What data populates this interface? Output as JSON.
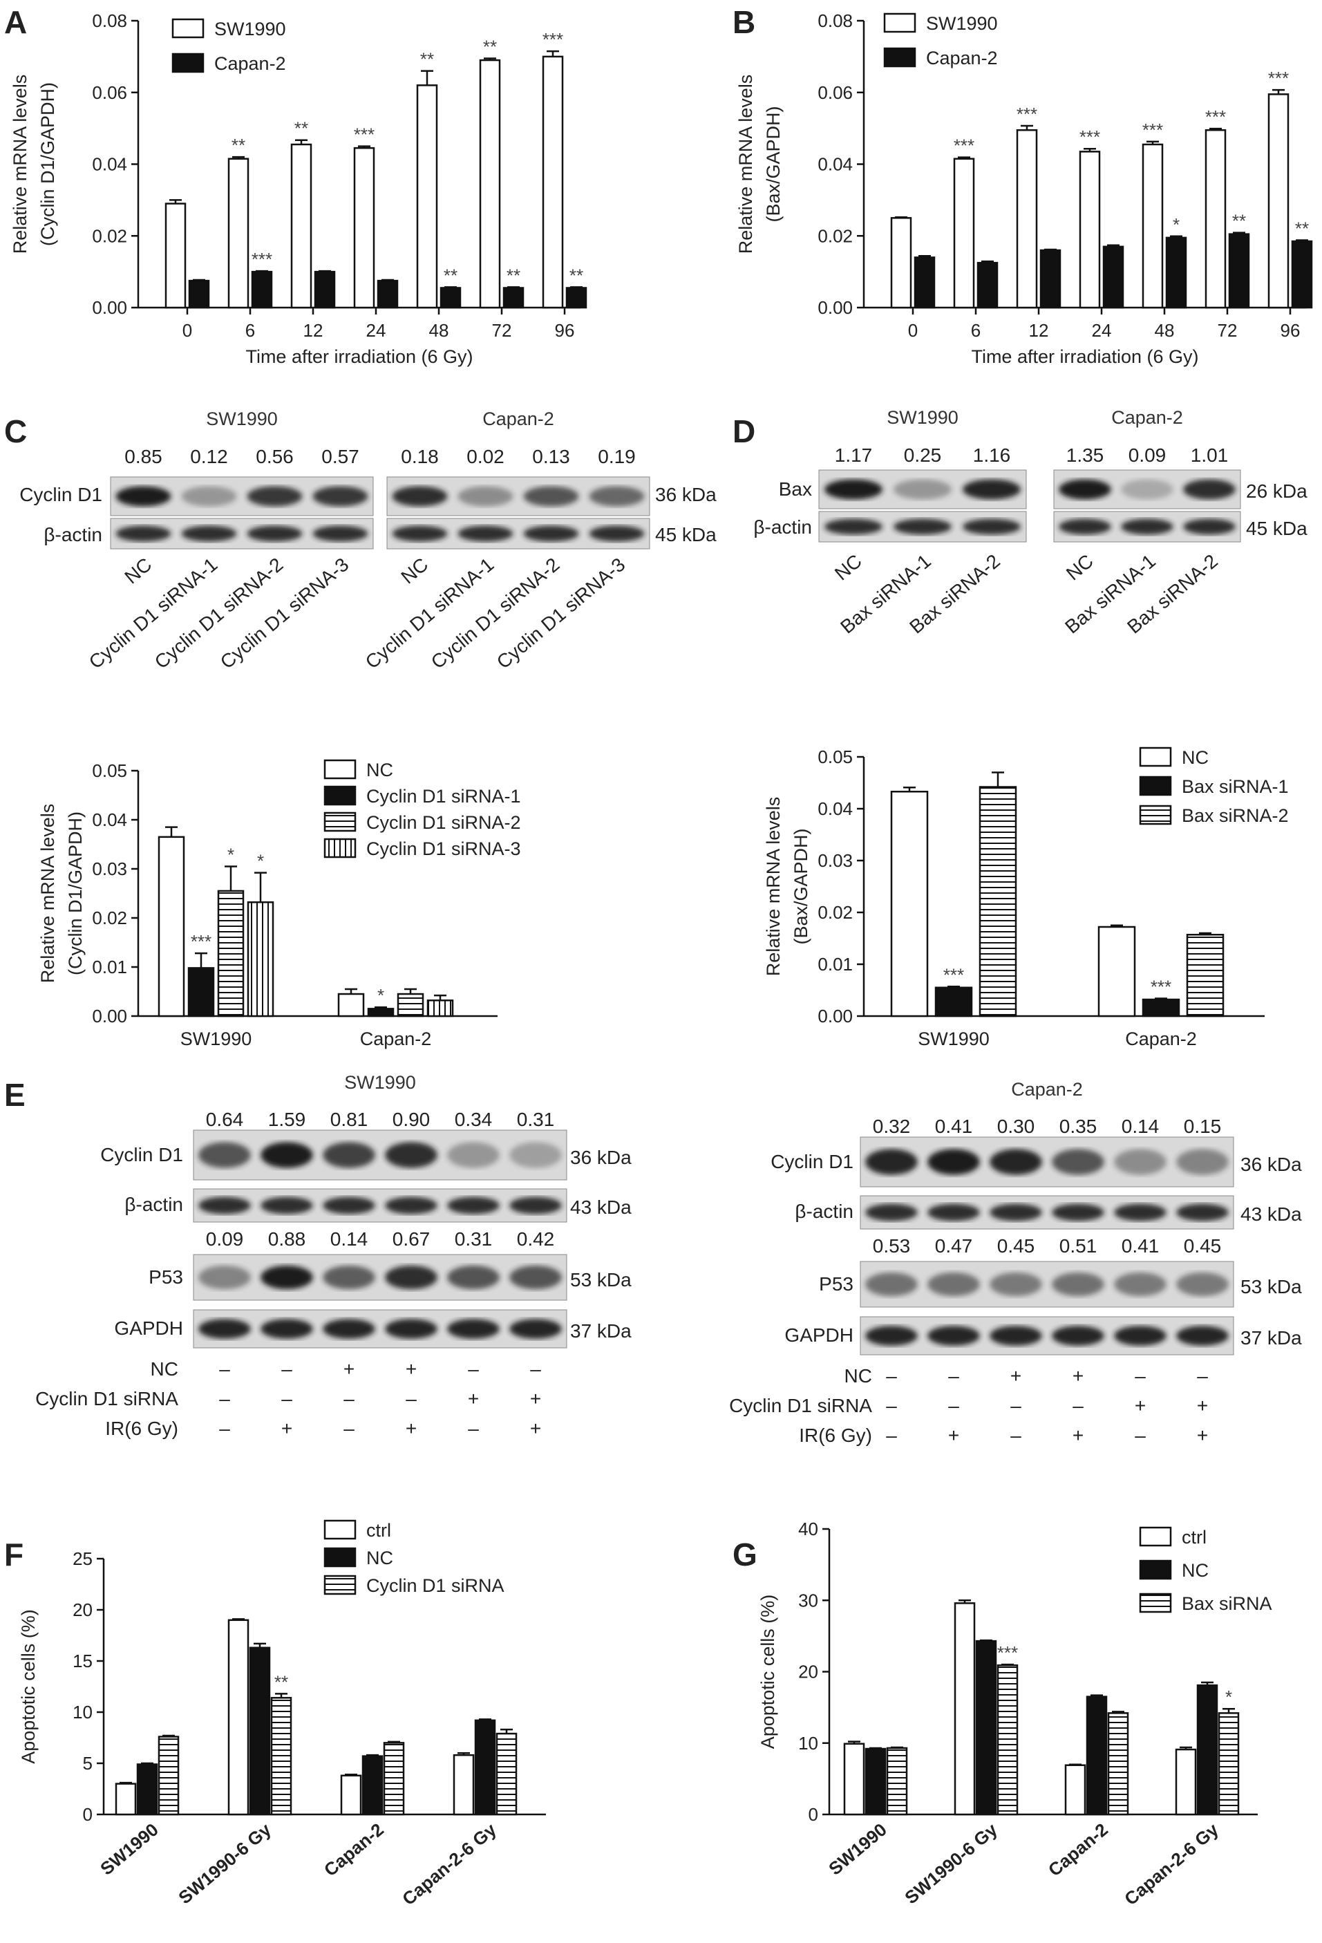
{
  "figure": {
    "panels": [
      "A",
      "B",
      "C",
      "D",
      "E",
      "F",
      "G"
    ]
  },
  "colors": {
    "open": "#ffffff",
    "filled": "#111111",
    "stroke": "#111111",
    "blot_bg": "#d9d9d9",
    "band": "#1a1a1a"
  },
  "chart_data": [
    {
      "id": "A",
      "type": "bar",
      "categories": [
        "0",
        "6",
        "12",
        "24",
        "48",
        "72",
        "96"
      ],
      "series": [
        {
          "name": "SW1990",
          "fill": "open",
          "values": [
            0.029,
            0.0415,
            0.0455,
            0.0445,
            0.062,
            0.069,
            0.07
          ],
          "errors": [
            0.001,
            0.0005,
            0.0012,
            0.0005,
            0.004,
            0.0005,
            0.0015
          ],
          "stars": [
            "",
            "**",
            "**",
            "***",
            "**",
            "**",
            "***"
          ]
        },
        {
          "name": "Capan-2",
          "fill": "filled",
          "values": [
            0.0075,
            0.01,
            0.01,
            0.0075,
            0.0055,
            0.0055,
            0.0055
          ],
          "errors": [
            0.0002,
            0.0002,
            0.0002,
            0.0002,
            0.0002,
            0.0002,
            0.0002
          ],
          "stars": [
            "",
            "***",
            "",
            "",
            "**",
            "**",
            "**"
          ]
        }
      ],
      "xlabel": "Time after irradiation (6 Gy)",
      "ylabel": [
        "Relative mRNA levels",
        "(Cyclin D1/GAPDH)"
      ],
      "ylim": [
        0,
        0.08
      ],
      "yticks": [
        "0.00",
        "0.02",
        "0.04",
        "0.06",
        "0.08"
      ]
    },
    {
      "id": "B",
      "type": "bar",
      "categories": [
        "0",
        "6",
        "12",
        "24",
        "48",
        "72",
        "96"
      ],
      "series": [
        {
          "name": "SW1990",
          "fill": "open",
          "values": [
            0.025,
            0.0415,
            0.0495,
            0.0435,
            0.0455,
            0.0495,
            0.0595
          ],
          "errors": [
            0.0002,
            0.0004,
            0.0012,
            0.0008,
            0.0008,
            0.0004,
            0.0012
          ],
          "stars": [
            "",
            "***",
            "***",
            "***",
            "***",
            "***",
            "***"
          ]
        },
        {
          "name": "Capan-2",
          "fill": "filled",
          "values": [
            0.014,
            0.0125,
            0.016,
            0.017,
            0.0195,
            0.0205,
            0.0185
          ],
          "errors": [
            0.0004,
            0.0004,
            0.0002,
            0.0004,
            0.0004,
            0.0004,
            0.0003
          ],
          "stars": [
            "",
            "",
            "",
            "",
            "*",
            "**",
            "**"
          ]
        }
      ],
      "xlabel": "Time after irradiation (6 Gy)",
      "ylabel": [
        "Relative mRNA levels",
        "(Bax/GAPDH)"
      ],
      "ylim": [
        0,
        0.08
      ],
      "yticks": [
        "0.00",
        "0.02",
        "0.04",
        "0.06",
        "0.08"
      ]
    },
    {
      "id": "C-bar",
      "type": "bar",
      "categories": [
        "SW1990",
        "Capan-2"
      ],
      "series": [
        {
          "name": "NC",
          "fill": "open",
          "values": [
            0.0365,
            0.0045
          ],
          "errors": [
            0.002,
            0.001
          ],
          "stars": [
            "",
            ""
          ]
        },
        {
          "name": "Cyclin D1 siRNA-1",
          "fill": "filled",
          "values": [
            0.0098,
            0.0015
          ],
          "errors": [
            0.003,
            0.0003
          ],
          "stars": [
            "***",
            "*"
          ]
        },
        {
          "name": "Cyclin D1 siRNA-2",
          "fill": "hlines",
          "values": [
            0.0255,
            0.0045
          ],
          "errors": [
            0.005,
            0.001
          ],
          "stars": [
            "*",
            ""
          ]
        },
        {
          "name": "Cyclin D1 siRNA-3",
          "fill": "vlines",
          "values": [
            0.0232,
            0.0032
          ],
          "errors": [
            0.006,
            0.001
          ],
          "stars": [
            "*",
            ""
          ]
        }
      ],
      "ylabel": [
        "Relative mRNA levels",
        "(Cyclin D1/GAPDH)"
      ],
      "ylim": [
        0,
        0.05
      ],
      "yticks": [
        "0.00",
        "0.01",
        "0.02",
        "0.03",
        "0.04",
        "0.05"
      ]
    },
    {
      "id": "D-bar",
      "type": "bar",
      "categories": [
        "SW1990",
        "Capan-2"
      ],
      "series": [
        {
          "name": "NC",
          "fill": "open",
          "values": [
            0.0433,
            0.0172
          ],
          "errors": [
            0.0008,
            0.0003
          ],
          "stars": [
            "",
            ""
          ]
        },
        {
          "name": "Bax siRNA-1",
          "fill": "filled",
          "values": [
            0.0055,
            0.0032
          ],
          "errors": [
            0.0002,
            0.0002
          ],
          "stars": [
            "***",
            "***"
          ]
        },
        {
          "name": "Bax siRNA-2",
          "fill": "hlines",
          "values": [
            0.0442,
            0.0157
          ],
          "errors": [
            0.0028,
            0.0003
          ],
          "stars": [
            "",
            ""
          ]
        }
      ],
      "ylabel": [
        "Relative mRNA levels",
        "(Bax/GAPDH)"
      ],
      "ylim": [
        0,
        0.05
      ],
      "yticks": [
        "0.00",
        "0.01",
        "0.02",
        "0.03",
        "0.04",
        "0.05"
      ]
    },
    {
      "id": "F",
      "type": "bar",
      "categories": [
        "SW1990",
        "SW1990-6 Gy",
        "Capan-2",
        "Capan-2-6 Gy"
      ],
      "series": [
        {
          "name": "ctrl",
          "fill": "open",
          "values": [
            3.0,
            19.0,
            3.8,
            5.8
          ],
          "errors": [
            0.1,
            0.1,
            0.1,
            0.2
          ],
          "stars": [
            "",
            "",
            "",
            ""
          ]
        },
        {
          "name": "NC",
          "fill": "filled",
          "values": [
            4.9,
            16.3,
            5.7,
            9.2
          ],
          "errors": [
            0.1,
            0.4,
            0.1,
            0.1
          ],
          "stars": [
            "",
            "",
            "",
            ""
          ]
        },
        {
          "name": "Cyclin D1 siRNA",
          "fill": "hlines",
          "values": [
            7.6,
            11.4,
            7.0,
            7.9
          ],
          "errors": [
            0.1,
            0.4,
            0.1,
            0.4
          ],
          "stars": [
            "",
            "**",
            "",
            ""
          ]
        }
      ],
      "ylabel": [
        "Apoptotic cells (%)"
      ],
      "ylim": [
        0,
        25
      ],
      "yticks": [
        "0",
        "5",
        "10",
        "15",
        "20",
        "25"
      ]
    },
    {
      "id": "G",
      "type": "bar",
      "categories": [
        "SW1990",
        "SW1990-6 Gy",
        "Capan-2",
        "Capan-2-6 Gy"
      ],
      "series": [
        {
          "name": "ctrl",
          "fill": "open",
          "values": [
            9.9,
            29.6,
            6.9,
            9.1
          ],
          "errors": [
            0.3,
            0.4,
            0.1,
            0.3
          ],
          "stars": [
            "",
            "",
            "",
            ""
          ]
        },
        {
          "name": "NC",
          "fill": "filled",
          "values": [
            9.2,
            24.3,
            16.5,
            18.1
          ],
          "errors": [
            0.1,
            0.1,
            0.2,
            0.4
          ],
          "stars": [
            "",
            "",
            "",
            ""
          ]
        },
        {
          "name": "Bax siRNA",
          "fill": "hlines",
          "values": [
            9.3,
            20.9,
            14.2,
            14.2
          ],
          "errors": [
            0.1,
            0.1,
            0.2,
            0.6
          ],
          "stars": [
            "",
            "***",
            "",
            "*"
          ]
        }
      ],
      "ylabel": [
        "Apoptotic cells (%)"
      ],
      "ylim": [
        0,
        40
      ],
      "yticks": [
        "0",
        "10",
        "20",
        "30",
        "40"
      ]
    }
  ],
  "blots": {
    "C": {
      "SW1990": {
        "title": "SW1990",
        "values": [
          "0.85",
          "0.12",
          "0.56",
          "0.57"
        ],
        "lanes": [
          "NC",
          "Cyclin D1 siRNA-1",
          "Cyclin D1 siRNA-2",
          "Cyclin D1 siRNA-3"
        ],
        "cyclin": [
          1.0,
          0.35,
          0.85,
          0.85
        ]
      },
      "Capan2": {
        "title": "Capan-2",
        "values": [
          "0.18",
          "0.02",
          "0.13",
          "0.19"
        ],
        "lanes": [
          "NC",
          "Cyclin D1 siRNA-1",
          "Cyclin D1 siRNA-2",
          "Cyclin D1 siRNA-3"
        ],
        "cyclin": [
          0.9,
          0.4,
          0.7,
          0.6
        ]
      },
      "rows": [
        "Cyclin D1",
        "β-actin"
      ],
      "sizes": [
        "36 kDa",
        "45 kDa"
      ]
    },
    "D": {
      "SW1990": {
        "title": "SW1990",
        "values": [
          "1.17",
          "0.25",
          "1.16"
        ],
        "lanes": [
          "NC",
          "Bax siRNA-1",
          "Bax siRNA-2"
        ],
        "bax": [
          1.0,
          0.35,
          0.95
        ]
      },
      "Capan2": {
        "title": "Capan-2",
        "values": [
          "1.35",
          "0.09",
          "1.01"
        ],
        "lanes": [
          "NC",
          "Bax siRNA-1",
          "Bax siRNA-2"
        ],
        "bax": [
          1.0,
          0.25,
          0.9
        ]
      },
      "rows": [
        "Bax",
        "β-actin"
      ],
      "sizes": [
        "26 kDa",
        "45 kDa"
      ]
    },
    "E": {
      "SW1990": {
        "title": "SW1990",
        "cyclin_values": [
          "0.64",
          "1.59",
          "0.81",
          "0.90",
          "0.34",
          "0.31"
        ],
        "p53_values": [
          "0.09",
          "0.88",
          "0.14",
          "0.67",
          "0.31",
          "0.42"
        ],
        "cyclin": [
          0.7,
          1.0,
          0.8,
          0.9,
          0.35,
          0.3
        ],
        "p53": [
          0.45,
          1.0,
          0.65,
          0.9,
          0.7,
          0.7
        ]
      },
      "Capan2": {
        "title": "Capan-2",
        "cyclin_values": [
          "0.32",
          "0.41",
          "0.30",
          "0.35",
          "0.14",
          "0.15"
        ],
        "p53_values": [
          "0.53",
          "0.47",
          "0.45",
          "0.51",
          "0.41",
          "0.45"
        ],
        "cyclin": [
          0.95,
          1.0,
          0.95,
          0.7,
          0.4,
          0.45
        ],
        "p53": [
          0.55,
          0.55,
          0.5,
          0.55,
          0.5,
          0.5
        ]
      },
      "rows": [
        "Cyclin D1",
        "β-actin",
        "P53",
        "GAPDH"
      ],
      "sizes": [
        "36 kDa",
        "43 kDa",
        "53 kDa",
        "37 kDa"
      ],
      "conditions": [
        {
          "label": "NC",
          "marks": [
            "–",
            "–",
            "+",
            "+",
            "–",
            "–"
          ]
        },
        {
          "label": "Cyclin D1 siRNA",
          "marks": [
            "–",
            "–",
            "–",
            "–",
            "+",
            "+"
          ]
        },
        {
          "label": "IR(6 Gy)",
          "marks": [
            "–",
            "+",
            "–",
            "+",
            "–",
            "+"
          ]
        }
      ]
    }
  }
}
